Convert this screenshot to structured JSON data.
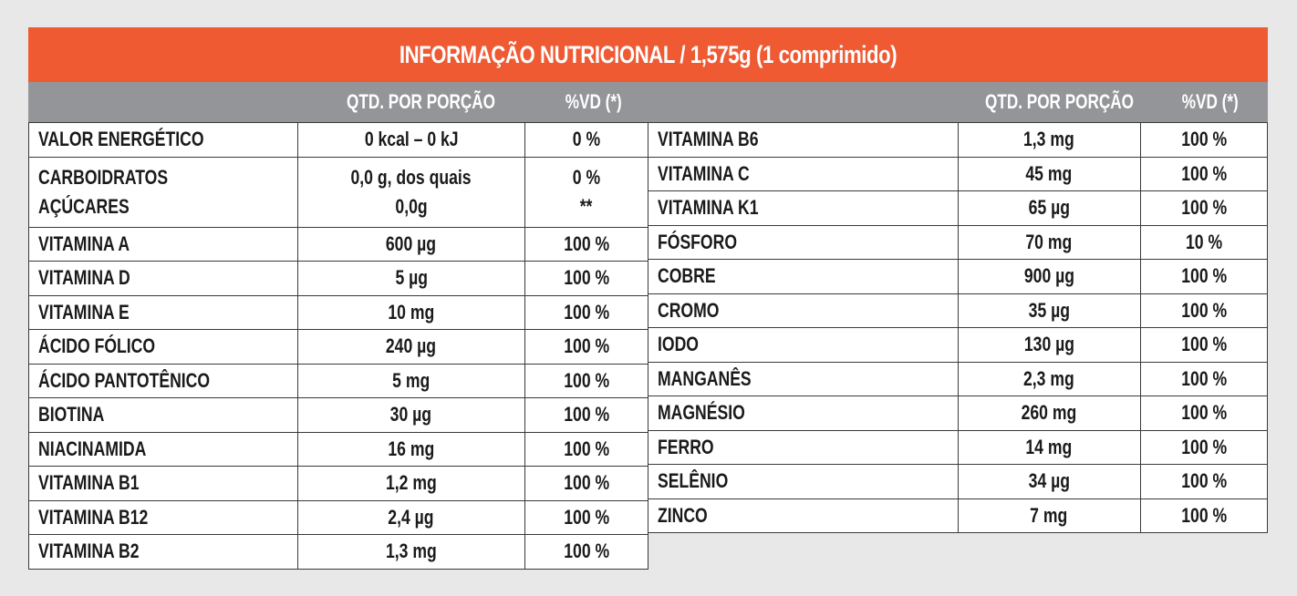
{
  "title": "INFORMAÇÃO NUTRICIONAL / 1,575g (1 comprimido)",
  "headers": {
    "qty": "QTD. POR PORÇÃO",
    "vd": "%VD (*)"
  },
  "left_rows": [
    {
      "name": "VALOR ENERGÉTICO",
      "qty": "0 kcal – 0 kJ",
      "vd": "0 %"
    },
    {
      "name": "CARBOIDRATOS",
      "qty": "0,0 g, dos quais",
      "vd": "0 %",
      "name2": "AÇÚCARES",
      "qty2": "0,0g",
      "vd2": "**"
    },
    {
      "name": "VITAMINA A",
      "qty": "600 µg",
      "vd": "100 %"
    },
    {
      "name": "VITAMINA D",
      "qty": "5 µg",
      "vd": "100 %"
    },
    {
      "name": "VITAMINA E",
      "qty": "10 mg",
      "vd": "100 %"
    },
    {
      "name": "ÁCIDO FÓLICO",
      "qty": "240 µg",
      "vd": "100 %"
    },
    {
      "name": "ÁCIDO PANTOTÊNICO",
      "qty": "5 mg",
      "vd": "100 %"
    },
    {
      "name": "BIOTINA",
      "qty": "30 µg",
      "vd": "100 %"
    },
    {
      "name": "NIACINAMIDA",
      "qty": "16 mg",
      "vd": "100 %"
    },
    {
      "name": "VITAMINA B1",
      "qty": "1,2 mg",
      "vd": "100 %"
    },
    {
      "name": "VITAMINA B12",
      "qty": "2,4 µg",
      "vd": "100 %"
    },
    {
      "name": "VITAMINA B2",
      "qty": "1,3 mg",
      "vd": "100 %"
    }
  ],
  "right_rows": [
    {
      "name": "VITAMINA B6",
      "qty": "1,3 mg",
      "vd": "100 %"
    },
    {
      "name": "VITAMINA C",
      "qty": "45 mg",
      "vd": "100 %"
    },
    {
      "name": "VITAMINA K1",
      "qty": "65 µg",
      "vd": "100 %"
    },
    {
      "name": "FÓSFORO",
      "qty": "70 mg",
      "vd": "10 %"
    },
    {
      "name": "COBRE",
      "qty": "900 µg",
      "vd": "100 %"
    },
    {
      "name": "CROMO",
      "qty": "35 µg",
      "vd": "100 %"
    },
    {
      "name": "IODO",
      "qty": "130 µg",
      "vd": "100 %"
    },
    {
      "name": "MANGANÊS",
      "qty": "2,3 mg",
      "vd": "100 %"
    },
    {
      "name": "MAGNÉSIO",
      "qty": "260 mg",
      "vd": "100 %"
    },
    {
      "name": "FERRO",
      "qty": "14 mg",
      "vd": "100 %"
    },
    {
      "name": "SELÊNIO",
      "qty": "34 µg",
      "vd": "100 %"
    },
    {
      "name": "ZINCO",
      "qty": "7 mg",
      "vd": "100 %"
    }
  ],
  "colors": {
    "title_bg": "#ef5a33",
    "header_bg": "#939598",
    "border": "#3a3a3a"
  }
}
